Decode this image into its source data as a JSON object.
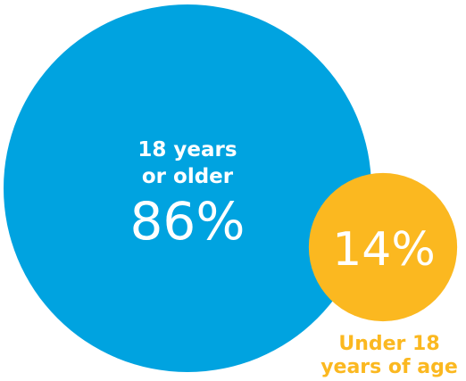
{
  "chart_data": {
    "type": "bubble",
    "series": [
      {
        "label_line1": "18 years",
        "label_line2": "or older",
        "value": 86,
        "value_label": "86%",
        "color": "#00A3E0"
      },
      {
        "label_line1": "Under 18",
        "label_line2": "years of age",
        "value": 14,
        "value_label": "14%",
        "color": "#FBB820"
      }
    ]
  },
  "colors": {
    "adult_text": "#ffffff",
    "minor_value_text": "#ffffff",
    "minor_caption_text": "#FBB820"
  }
}
